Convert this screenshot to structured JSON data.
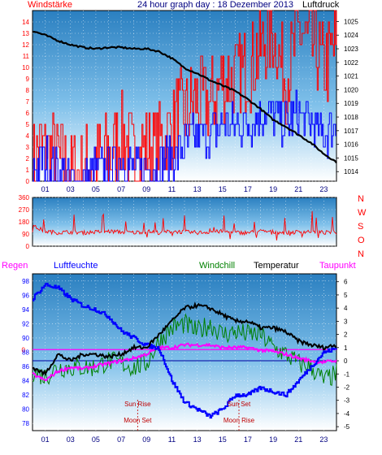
{
  "header": {
    "left_label": "Windstärke",
    "title": "24 hour graph day : 18 Dezember 2013",
    "right_label": "Luftdruck"
  },
  "middle_panel": {
    "direction_letters": [
      "N",
      "W",
      "S",
      "O",
      "N"
    ]
  },
  "bottom_header": {
    "regen": "Regen",
    "luftfeuchte": "Luftfeuchte",
    "windchill": "Windchill",
    "temperatur": "Temperatur",
    "taupunkt": "Taupunkt"
  },
  "annotations": [
    {
      "label": "Sun Rise",
      "hour": 8.3
    },
    {
      "label": "Moon Set",
      "hour": 8.3
    },
    {
      "label": "Sun Set",
      "hour": 16.3
    },
    {
      "label": "Moon Rise",
      "hour": 16.3
    }
  ],
  "colors": {
    "wind": "#ff0000",
    "gust": "#0000ff",
    "pressure": "#000000",
    "humidity": "#0000ff",
    "windchill": "#008000",
    "temperature": "#000000",
    "dewpoint": "#ff00ff",
    "rain": "#ff00ff",
    "title": "#000080"
  },
  "chart_data": [
    {
      "type": "line",
      "name": "wind-pressure",
      "x_ticks": [
        "01",
        "03",
        "05",
        "07",
        "09",
        "11",
        "13",
        "15",
        "17",
        "19",
        "21",
        "23"
      ],
      "xlim": [
        0,
        24
      ],
      "y_left": {
        "label": "Windstärke",
        "ticks": [
          0,
          1,
          2,
          3,
          4,
          5,
          6,
          7,
          8,
          9,
          10,
          11,
          12,
          13,
          14
        ],
        "ylim": [
          0,
          15
        ]
      },
      "y_right": {
        "label": "Luftdruck",
        "ticks": [
          1014,
          1015,
          1016,
          1017,
          1018,
          1019,
          1020,
          1021,
          1022,
          1023,
          1024,
          1025
        ],
        "ylim": [
          1013.3,
          1025.8
        ]
      },
      "series": [
        {
          "role": "pressure",
          "x": [
            0,
            1,
            2,
            3,
            4,
            5,
            6,
            7,
            8,
            9,
            10,
            11,
            12,
            13,
            14,
            15,
            16,
            17,
            18,
            19,
            20,
            21,
            22,
            23,
            24
          ],
          "values": [
            1024.3,
            1024.0,
            1023.6,
            1023.3,
            1023.1,
            1023.0,
            1023.1,
            1023.1,
            1023.0,
            1023.0,
            1022.8,
            1022.3,
            1021.6,
            1021.2,
            1020.7,
            1020.3,
            1019.9,
            1019.3,
            1018.6,
            1017.8,
            1017.3,
            1016.7,
            1016.1,
            1015.3,
            1014.7
          ]
        },
        {
          "role": "wind",
          "x": [
            0,
            1,
            2,
            3,
            4,
            5,
            6,
            7,
            8,
            9,
            10,
            11,
            12,
            13,
            14,
            15,
            16,
            17,
            18,
            19,
            20,
            21,
            22,
            23,
            24
          ],
          "values": [
            2,
            3,
            2,
            1,
            1,
            2,
            2,
            4,
            2,
            3,
            3,
            5,
            6,
            7,
            7,
            9,
            9,
            10,
            12,
            13,
            9,
            13,
            12,
            10,
            12
          ]
        },
        {
          "role": "gust",
          "x": [
            0,
            1,
            2,
            3,
            4,
            5,
            6,
            7,
            8,
            9,
            10,
            11,
            12,
            13,
            14,
            15,
            16,
            17,
            18,
            19,
            20,
            21,
            22,
            23,
            24
          ],
          "values": [
            1,
            2,
            1,
            0,
            0,
            1,
            1,
            2,
            1,
            1,
            2,
            2,
            3,
            4,
            4,
            5,
            5,
            5,
            6,
            6,
            5,
            6,
            5,
            4,
            5
          ]
        }
      ]
    },
    {
      "type": "line",
      "name": "wind-direction",
      "x_ticks": [],
      "xlim": [
        0,
        24
      ],
      "y_left": {
        "ticks": [
          0,
          90,
          180,
          270,
          360
        ],
        "ylim": [
          0,
          360
        ]
      },
      "series": [
        {
          "role": "direction",
          "x": [
            0,
            1,
            2,
            3,
            4,
            5,
            6,
            7,
            8,
            9,
            10,
            11,
            12,
            13,
            14,
            15,
            16,
            17,
            18,
            19,
            20,
            21,
            22,
            23,
            24
          ],
          "values": [
            150,
            110,
            100,
            105,
            100,
            105,
            110,
            105,
            100,
            110,
            100,
            110,
            105,
            100,
            105,
            110,
            100,
            100,
            110,
            105,
            100,
            105,
            110,
            100,
            105
          ]
        }
      ]
    },
    {
      "type": "line",
      "name": "temperature-humidity",
      "x_ticks": [
        "01",
        "03",
        "05",
        "07",
        "09",
        "11",
        "13",
        "15",
        "17",
        "19",
        "21",
        "23"
      ],
      "xlim": [
        0,
        24
      ],
      "y_left": {
        "label": "Luftfeuchte",
        "ticks": [
          78,
          80,
          82,
          84,
          86,
          88,
          90,
          92,
          94,
          96,
          98
        ],
        "ylim": [
          77,
          99
        ]
      },
      "y_right": {
        "label": "Temperatur",
        "ticks": [
          -5,
          -4,
          -3,
          -2,
          -1,
          0,
          1,
          2,
          3,
          4,
          5,
          6
        ],
        "ylim": [
          -5.3,
          6.6
        ]
      },
      "rain_level": {
        "label": "0",
        "value": 0.85
      },
      "series": [
        {
          "role": "humidity",
          "x": [
            0,
            1,
            2,
            3,
            4,
            5,
            6,
            7,
            8,
            9,
            10,
            11,
            12,
            13,
            14,
            15,
            16,
            17,
            18,
            19,
            20,
            21,
            22,
            23,
            24
          ],
          "values": [
            95.5,
            97.5,
            97.0,
            95.5,
            94.5,
            94.0,
            93.0,
            91.0,
            90.0,
            89.0,
            88.5,
            84.0,
            81.0,
            80.0,
            79.0,
            80.0,
            82.0,
            82.0,
            83.0,
            82.5,
            82.0,
            84.0,
            86.0,
            88.0,
            88.5
          ]
        },
        {
          "role": "temperature",
          "x": [
            0,
            1,
            2,
            3,
            4,
            5,
            6,
            7,
            8,
            9,
            10,
            11,
            12,
            13,
            14,
            15,
            16,
            17,
            18,
            19,
            20,
            21,
            22,
            23,
            24
          ],
          "values": [
            -0.5,
            -1.0,
            0.5,
            0.0,
            0.5,
            0.5,
            0.3,
            0.5,
            1.0,
            1.0,
            2.0,
            3.0,
            4.0,
            4.2,
            4.0,
            3.5,
            3.0,
            3.0,
            2.5,
            2.5,
            2.2,
            1.5,
            1.2,
            1.0,
            1.2
          ]
        },
        {
          "role": "windchill",
          "x": [
            0,
            1,
            2,
            3,
            4,
            5,
            6,
            7,
            8,
            9,
            10,
            11,
            12,
            13,
            14,
            15,
            16,
            17,
            18,
            19,
            20,
            21,
            22,
            23,
            24
          ],
          "values": [
            -0.8,
            -1.2,
            -0.5,
            -0.5,
            -0.5,
            -0.5,
            0.0,
            -0.2,
            -0.5,
            -0.2,
            1.5,
            2.5,
            2.8,
            2.2,
            2.8,
            2.0,
            2.2,
            2.0,
            2.0,
            1.0,
            0.5,
            -0.2,
            -0.5,
            -1.5,
            -1.0
          ]
        },
        {
          "role": "dewpoint",
          "x": [
            0,
            1,
            2,
            3,
            4,
            5,
            6,
            7,
            8,
            9,
            10,
            11,
            12,
            13,
            14,
            15,
            16,
            17,
            18,
            19,
            20,
            21,
            22,
            23,
            24
          ],
          "values": [
            -1.0,
            -1.5,
            -0.8,
            -0.5,
            -0.6,
            -0.4,
            -0.2,
            0.0,
            0.2,
            0.5,
            1.0,
            1.0,
            1.2,
            1.2,
            1.2,
            1.0,
            1.0,
            1.0,
            0.8,
            0.7,
            0.5,
            0.2,
            0.0,
            -0.1,
            0.0
          ]
        }
      ]
    }
  ]
}
